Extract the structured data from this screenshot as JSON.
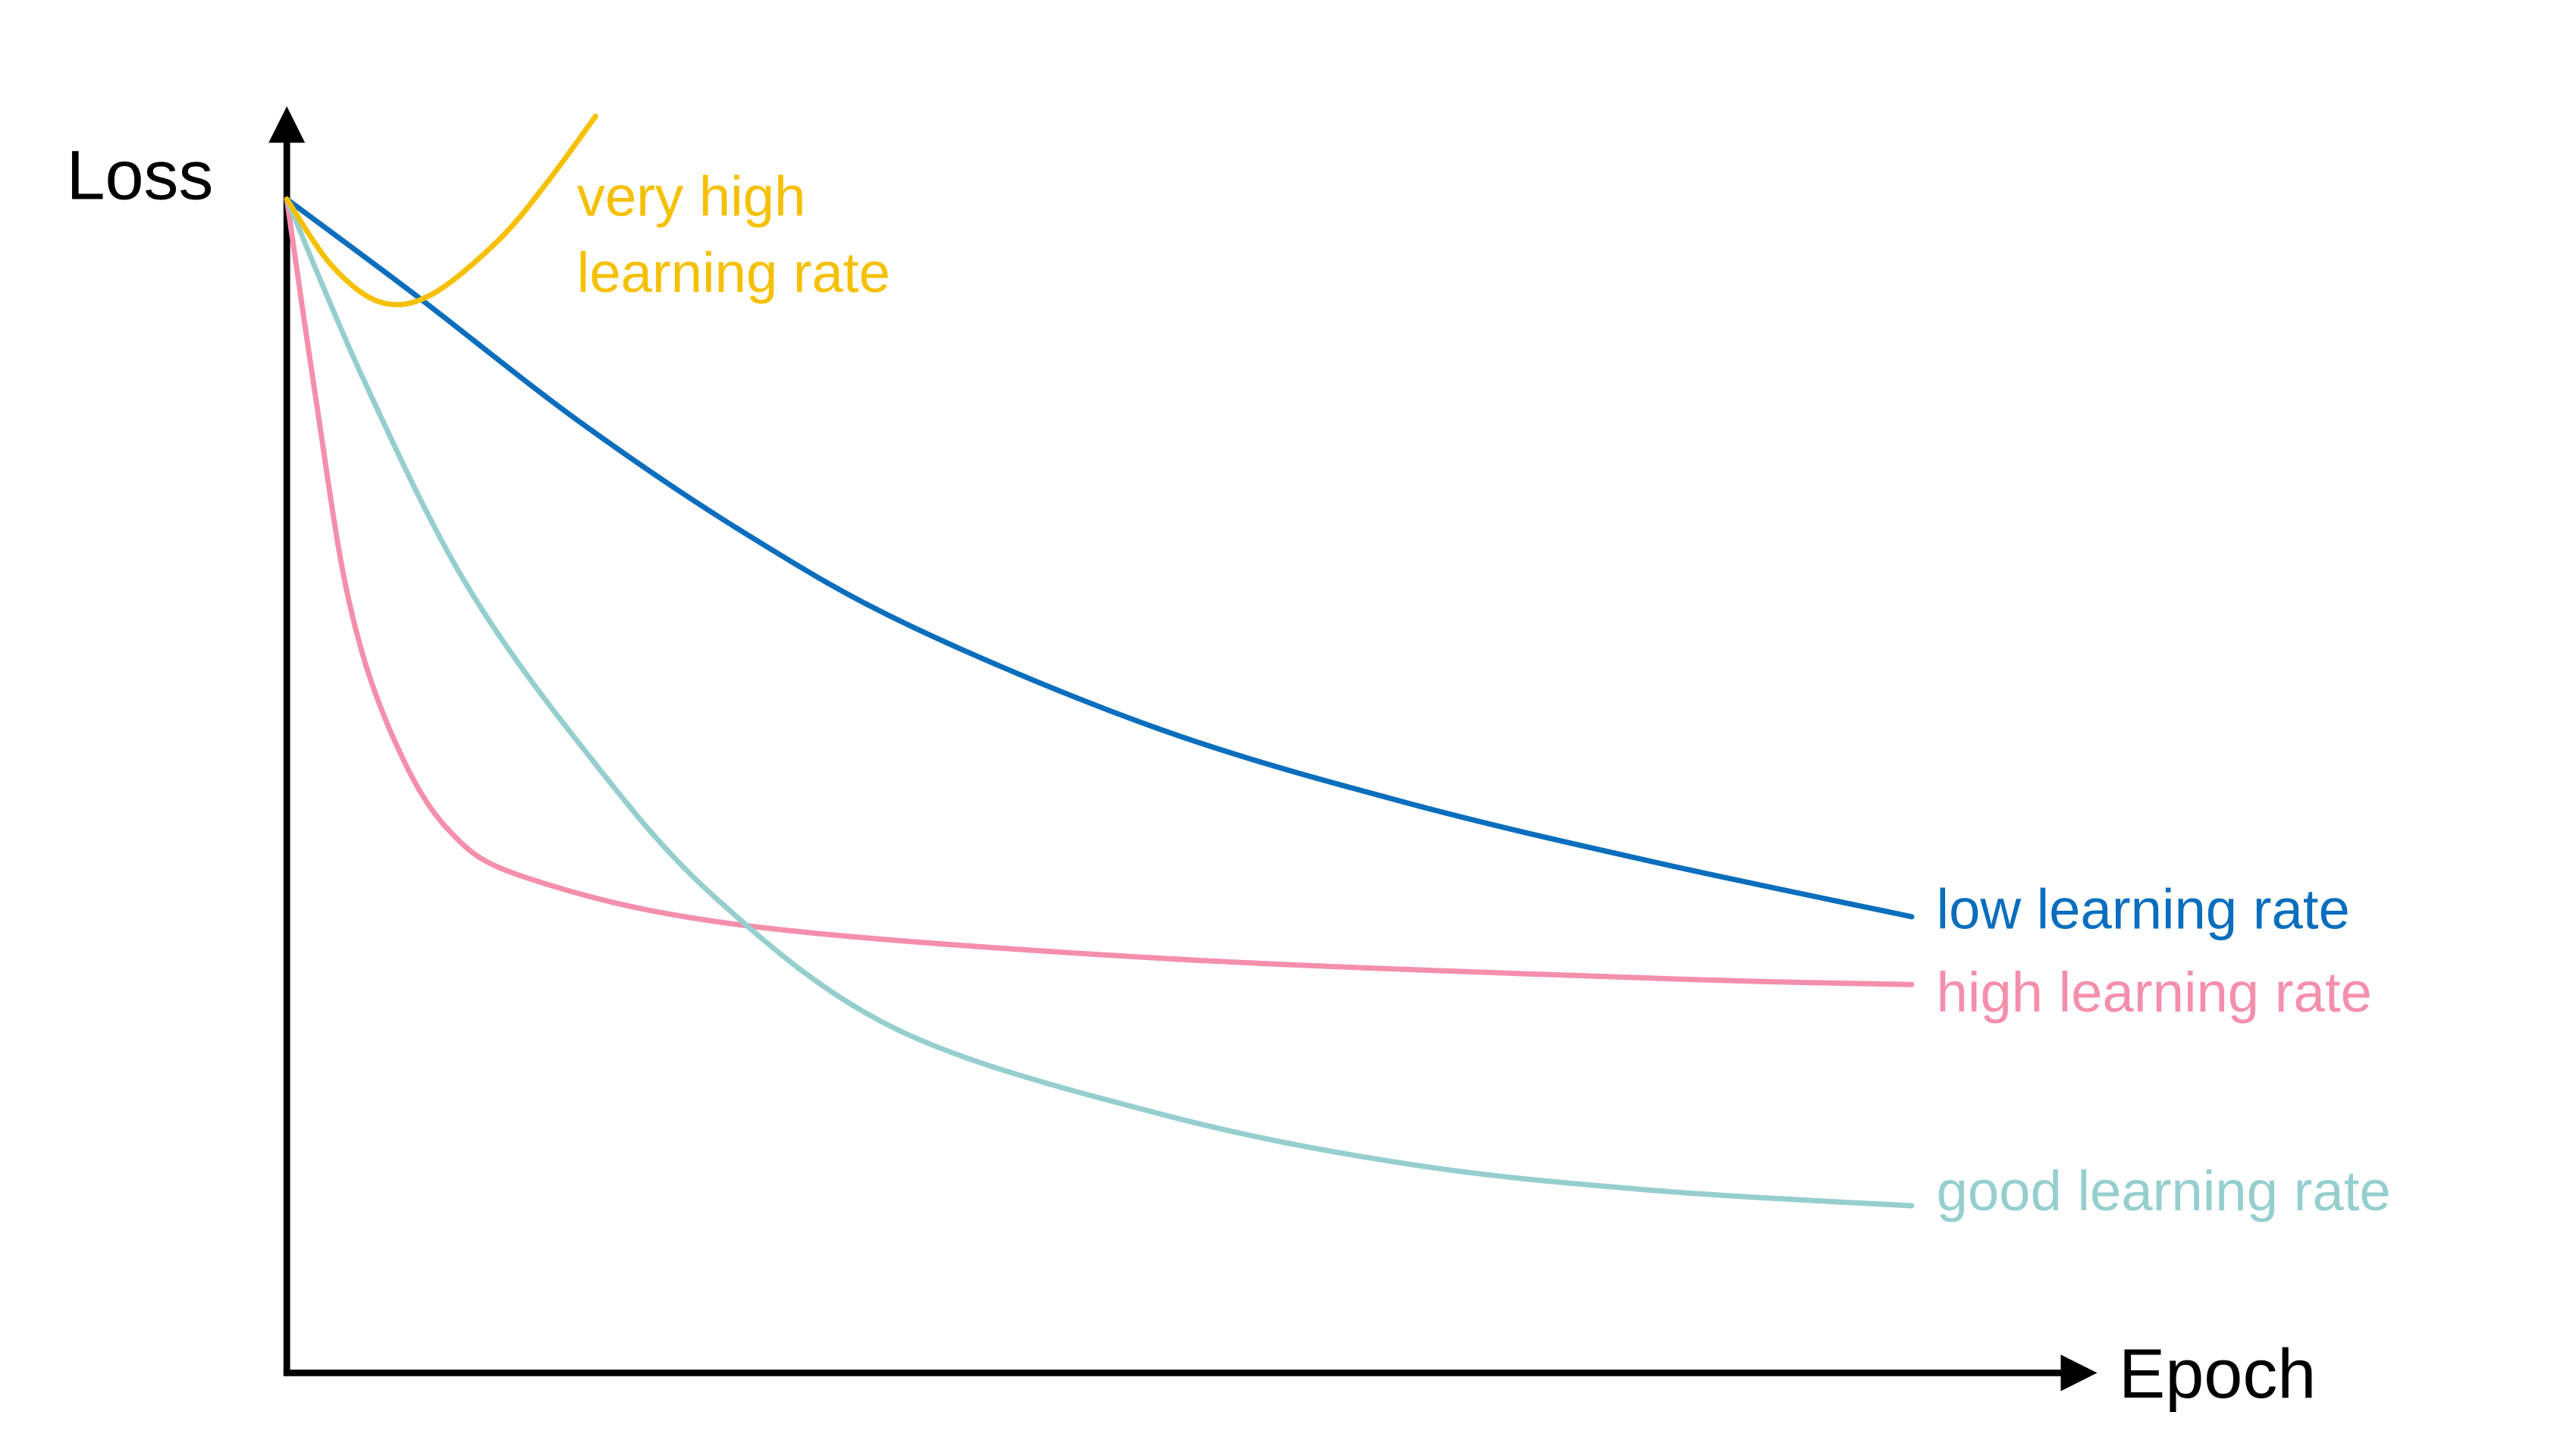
{
  "chart_data": {
    "type": "line",
    "x_label": "Epoch",
    "y_label": "Loss",
    "xlim": [
      0,
      100
    ],
    "ylim": [
      0,
      100
    ],
    "series": [
      {
        "name": "low learning rate",
        "color": "#0a6ebd",
        "x": [
          0,
          7.1,
          16.3,
          25.4,
          34.6,
          48.4,
          62.2,
          75.9,
          90.0
        ],
        "values": [
          93.4,
          85.8,
          75.6,
          66.8,
          59.4,
          51.2,
          45.3,
          40.6,
          36.3
        ]
      },
      {
        "name": "high learning rate",
        "color": "#f48fab",
        "x": [
          0,
          1.6,
          3.4,
          5.7,
          8.9,
          13.5,
          25.4,
          48.4,
          75.9,
          90.0
        ],
        "values": [
          93.4,
          77.6,
          61.7,
          51.2,
          43.3,
          39.3,
          35.6,
          33.0,
          31.4,
          30.9
        ]
      },
      {
        "name": "good learning rate",
        "color": "#96cece",
        "x": [
          0,
          4.3,
          9.8,
          16.3,
          23.6,
          33.7,
          48.4,
          62.2,
          75.9,
          90.0
        ],
        "values": [
          93.4,
          78.9,
          63.1,
          49.9,
          38.0,
          27.4,
          20.6,
          16.6,
          14.5,
          13.3
        ]
      },
      {
        "name": "very high learning rate",
        "color": "#f5c000",
        "x": [
          0,
          2.5,
          5.2,
          8.0,
          11.7,
          14.4,
          17.1
        ],
        "values": [
          93.4,
          88.1,
          85.2,
          85.8,
          90.1,
          94.7,
          100.0
        ]
      }
    ]
  }
}
